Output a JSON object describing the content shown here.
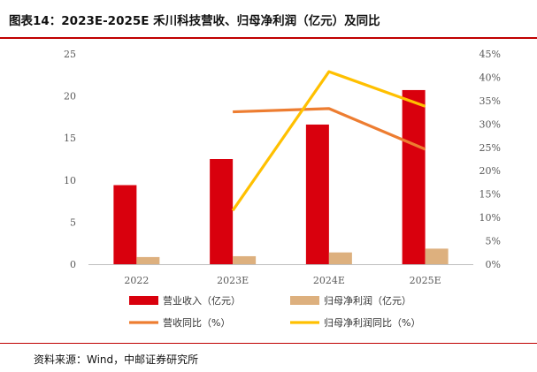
{
  "header": {
    "title": "图表14：2023E-2025E 禾川科技营收、归母净利润（亿元）及同比"
  },
  "source": "资料来源：Wind，中邮证券研究所",
  "chart_data": {
    "type": "bar",
    "categories": [
      "2022",
      "2023E",
      "2024E",
      "2025E"
    ],
    "series": [
      {
        "name": "营业收入（亿元）",
        "kind": "bar",
        "axis": "left",
        "color": "#d9000d",
        "values": [
          9.4,
          12.5,
          16.6,
          20.7
        ]
      },
      {
        "name": "归母净利润（亿元）",
        "kind": "bar",
        "axis": "left",
        "color": "#ddb07e",
        "values": [
          0.85,
          0.95,
          1.4,
          1.85
        ]
      },
      {
        "name": "营收同比（%）",
        "kind": "line",
        "axis": "right",
        "color": "#ed7d31",
        "values": [
          null,
          32.6,
          33.3,
          24.6
        ]
      },
      {
        "name": "归母净利润同比（%）",
        "kind": "line",
        "axis": "right",
        "color": "#ffc000",
        "values": [
          null,
          11.5,
          41.2,
          33.8
        ]
      }
    ],
    "ylim_left": [
      0,
      25
    ],
    "yticks_left": [
      "0",
      "5",
      "10",
      "15",
      "20",
      "25"
    ],
    "ylim_right": [
      0,
      45
    ],
    "yticks_right": [
      "0%",
      "5%",
      "10%",
      "15%",
      "20%",
      "25%",
      "30%",
      "35%",
      "40%",
      "45%"
    ],
    "legend_position": "bottom",
    "grid": false
  }
}
